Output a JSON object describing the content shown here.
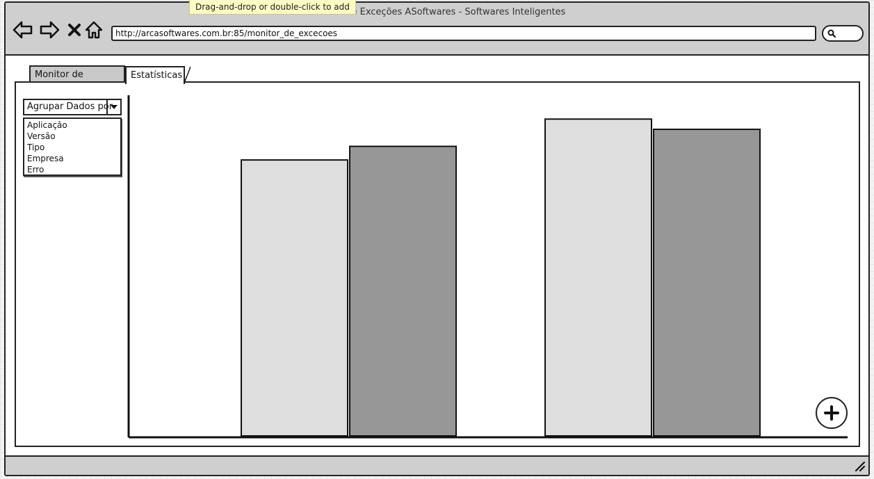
{
  "tooltip": "Drag-and-drop or double-click to add",
  "window": {
    "title": "Monitor de Exceções ASoftwares - Softwares Inteligentes"
  },
  "address": {
    "url": "http://arcasoftwares.com.br:85/monitor_de_excecoes"
  },
  "nav_icons": [
    "back-arrow-icon",
    "forward-arrow-icon",
    "close-x-icon",
    "home-icon"
  ],
  "tabs": [
    {
      "label": "Monitor de Exceções",
      "active": false
    },
    {
      "label": "Estatísticas",
      "active": true
    }
  ],
  "group_by": {
    "label": "Agrupar Dados por",
    "options": [
      "Aplicação",
      "Versão",
      "Tipo",
      "Empresa",
      "Erro"
    ]
  },
  "colors": {
    "bar_light": "#dedede",
    "bar_dark": "#979797",
    "frame": "#222222"
  },
  "chart_data": {
    "type": "bar",
    "categories": [
      "",
      ""
    ],
    "series": [
      {
        "values": [
          81,
          93
        ],
        "color": "#dedede"
      },
      {
        "values": [
          85,
          90
        ],
        "color": "#979797"
      }
    ],
    "ylim": [
      0,
      100
    ],
    "title": "",
    "xlabel": "",
    "ylabel": "",
    "grid": false,
    "legend": "none"
  },
  "add_button": {
    "icon": "plus-icon"
  }
}
